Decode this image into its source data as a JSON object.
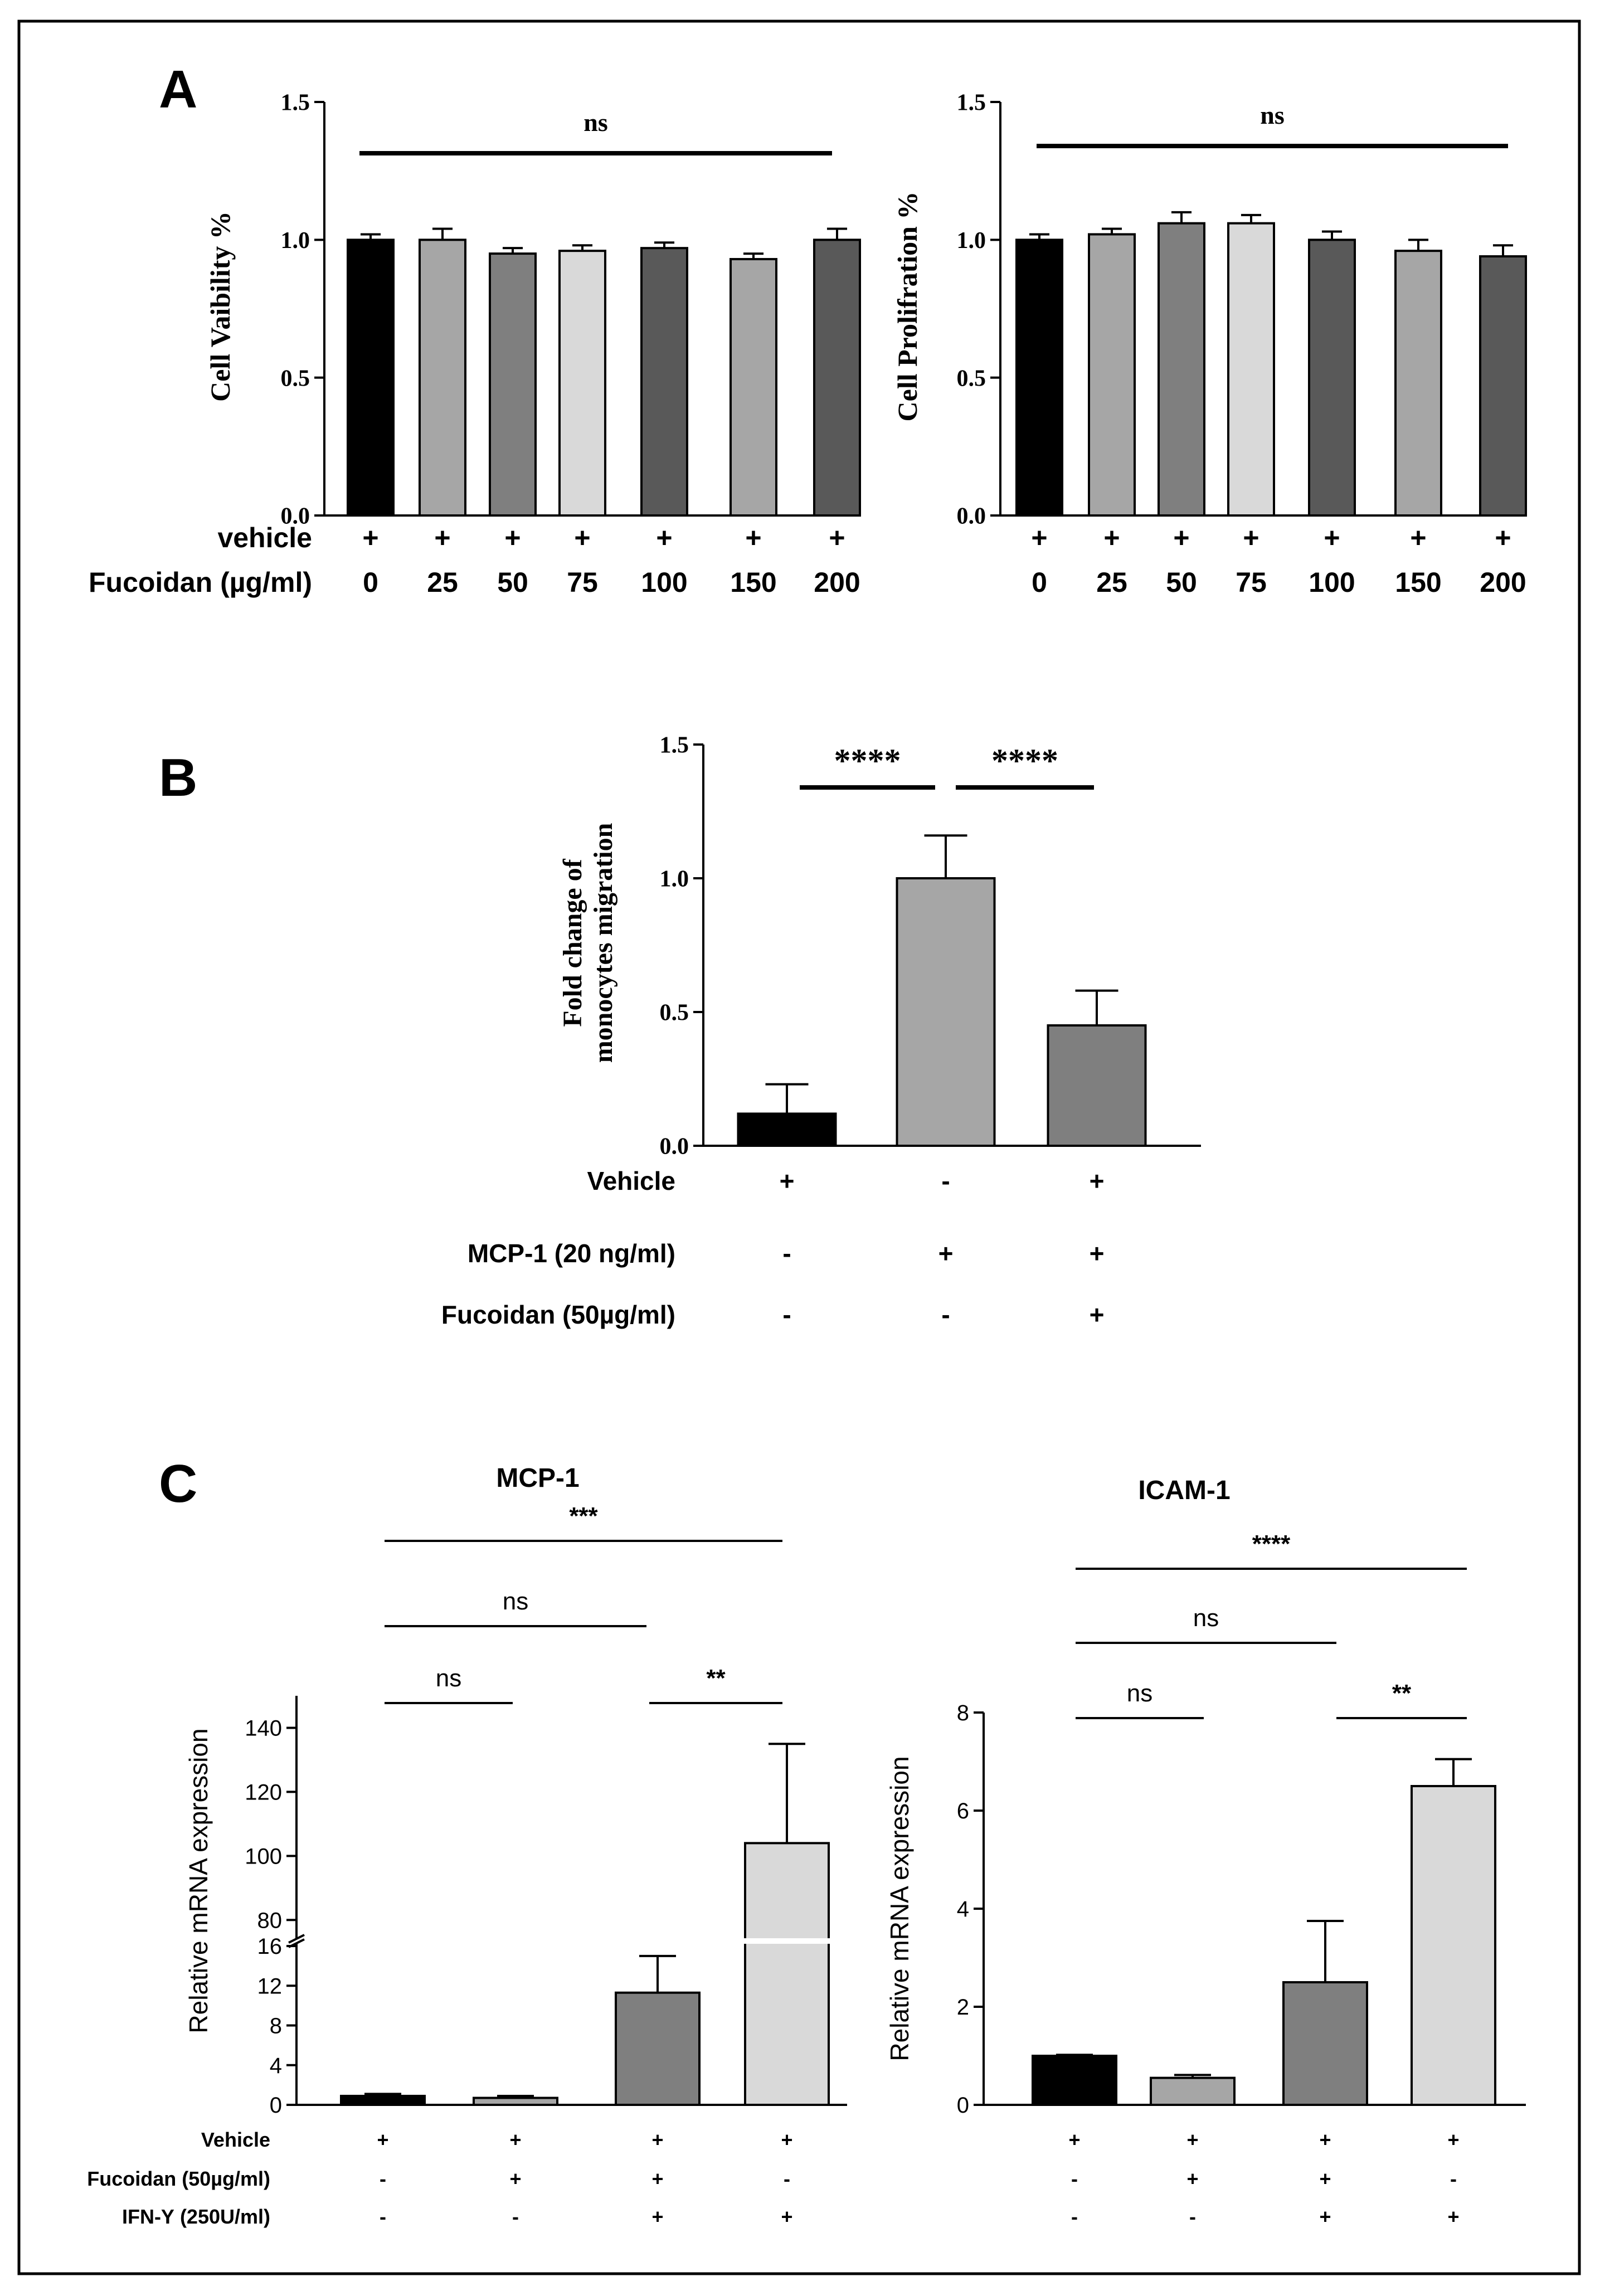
{
  "figure": {
    "panel_labels": [
      "A",
      "B",
      "C"
    ]
  },
  "chart_data": [
    {
      "id": "A-left",
      "type": "bar",
      "title": "",
      "xlabel": "",
      "ylabel": "Cell  Vaibility %",
      "ylim": [
        0,
        1.5
      ],
      "yticks": [
        "0.0",
        "0.5",
        "1.0",
        "1.5"
      ],
      "categories": [
        "0",
        "25",
        "50",
        "75",
        "100",
        "150",
        "200"
      ],
      "values": [
        1.0,
        1.0,
        0.95,
        0.96,
        0.97,
        0.93,
        1.0
      ],
      "errors": [
        0.02,
        0.04,
        0.02,
        0.02,
        0.02,
        0.02,
        0.04
      ],
      "bar_colors": [
        "#000000",
        "#a6a6a6",
        "#7f7f7f",
        "#d9d9d9",
        "#595959",
        "#a6a6a6",
        "#595959"
      ],
      "conditions": [
        {
          "label": "vehicle",
          "marks": [
            "+",
            "+",
            "+",
            "+",
            "+",
            "+",
            "+"
          ]
        },
        {
          "label": "Fucoidan (µg/ml)",
          "marks": [
            "0",
            "25",
            "50",
            "75",
            "100",
            "150",
            "200"
          ]
        }
      ],
      "significance": [
        {
          "from": 0,
          "to": 6,
          "label": "ns"
        }
      ]
    },
    {
      "id": "A-right",
      "type": "bar",
      "title": "",
      "xlabel": "",
      "ylabel": "Cell Prolifration %",
      "ylim": [
        0,
        1.5
      ],
      "yticks": [
        "0.0",
        "0.5",
        "1.0",
        "1.5"
      ],
      "categories": [
        "0",
        "25",
        "50",
        "75",
        "100",
        "150",
        "200"
      ],
      "values": [
        1.0,
        1.02,
        1.06,
        1.06,
        1.0,
        0.96,
        0.94
      ],
      "errors": [
        0.02,
        0.02,
        0.04,
        0.03,
        0.03,
        0.04,
        0.04
      ],
      "bar_colors": [
        "#000000",
        "#a6a6a6",
        "#7f7f7f",
        "#d9d9d9",
        "#595959",
        "#a6a6a6",
        "#595959"
      ],
      "conditions": [
        {
          "label": "",
          "marks": [
            "+",
            "+",
            "+",
            "+",
            "+",
            "+",
            "+"
          ]
        },
        {
          "label": "",
          "marks": [
            "0",
            "25",
            "50",
            "75",
            "100",
            "150",
            "200"
          ]
        }
      ],
      "significance": [
        {
          "from": 0,
          "to": 6,
          "label": "ns"
        }
      ]
    },
    {
      "id": "B",
      "type": "bar",
      "title": "",
      "xlabel": "",
      "ylabel": [
        "Fold change of",
        "monocytes migration"
      ],
      "ylim": [
        0,
        1.5
      ],
      "yticks": [
        "0.0",
        "0.5",
        "1.0",
        "1.5"
      ],
      "categories": [
        "Vehicle",
        "MCP-1",
        "MCP-1 + Fucoidan"
      ],
      "values": [
        0.12,
        1.0,
        0.45
      ],
      "errors": [
        0.11,
        0.16,
        0.13
      ],
      "bar_colors": [
        "#000000",
        "#a6a6a6",
        "#7f7f7f"
      ],
      "conditions": [
        {
          "label": "Vehicle",
          "marks": [
            "+",
            "-",
            "+"
          ]
        },
        {
          "label": "MCP-1 (20 ng/ml)",
          "marks": [
            "-",
            "+",
            "+"
          ]
        },
        {
          "label": "Fucoidan (50µg/ml)",
          "marks": [
            "-",
            "-",
            "+"
          ]
        }
      ],
      "significance": [
        {
          "from": 0,
          "to": 1,
          "label": "****"
        },
        {
          "from": 1,
          "to": 2,
          "label": "****"
        }
      ]
    },
    {
      "id": "C-left",
      "type": "bar",
      "title": "MCP-1",
      "xlabel": "",
      "ylabel": "Relative mRNA expression",
      "axis_break": {
        "lower": [
          0,
          16
        ],
        "upper": [
          75,
          150
        ]
      },
      "yticks_lower": [
        "0",
        "4",
        "8",
        "12",
        "16"
      ],
      "yticks_upper": [
        "80",
        "100",
        "120",
        "140"
      ],
      "categories": [
        "Vehicle",
        "Fucoidan",
        "Fucoidan + IFN-γ",
        "IFN-γ"
      ],
      "values": [
        0.9,
        0.7,
        11.3,
        104
      ],
      "errors": [
        0.2,
        0.2,
        3.7,
        31
      ],
      "bar_colors": [
        "#000000",
        "#a6a6a6",
        "#7f7f7f",
        "#d9d9d9"
      ],
      "conditions": [
        {
          "label": "Vehicle",
          "marks": [
            "+",
            "+",
            "+",
            "+"
          ]
        },
        {
          "label": "Fucoidan (50µg/ml)",
          "marks": [
            "-",
            "+",
            "+",
            "-"
          ]
        },
        {
          "label": "IFN-Υ (250U/ml)",
          "marks": [
            "-",
            "-",
            "+",
            "+"
          ]
        }
      ],
      "significance": [
        {
          "from": 0,
          "to": 3,
          "label": "***"
        },
        {
          "from": 0,
          "to": 2,
          "label": "ns"
        },
        {
          "from": 0,
          "to": 1,
          "label": "ns"
        },
        {
          "from": 2,
          "to": 3,
          "label": "**"
        }
      ]
    },
    {
      "id": "C-right",
      "type": "bar",
      "title": "ICAM-1",
      "xlabel": "",
      "ylabel": "Relative mRNA expression",
      "ylim": [
        0,
        8
      ],
      "yticks": [
        "0",
        "2",
        "4",
        "6",
        "8"
      ],
      "categories": [
        "Vehicle",
        "Fucoidan",
        "Fucoidan + IFN-γ",
        "IFN-γ"
      ],
      "values": [
        1.0,
        0.55,
        2.5,
        6.5
      ],
      "errors": [
        0.02,
        0.06,
        1.25,
        0.55
      ],
      "bar_colors": [
        "#000000",
        "#a6a6a6",
        "#7f7f7f",
        "#d9d9d9"
      ],
      "conditions": [
        {
          "label": "",
          "marks": [
            "+",
            "+",
            "+",
            "+"
          ]
        },
        {
          "label": "",
          "marks": [
            "-",
            "+",
            "+",
            "-"
          ]
        },
        {
          "label": "",
          "marks": [
            "-",
            "-",
            "+",
            "+"
          ]
        }
      ],
      "significance": [
        {
          "from": 0,
          "to": 3,
          "label": "****"
        },
        {
          "from": 0,
          "to": 2,
          "label": "ns"
        },
        {
          "from": 0,
          "to": 1,
          "label": "ns"
        },
        {
          "from": 2,
          "to": 3,
          "label": "**"
        }
      ]
    }
  ]
}
